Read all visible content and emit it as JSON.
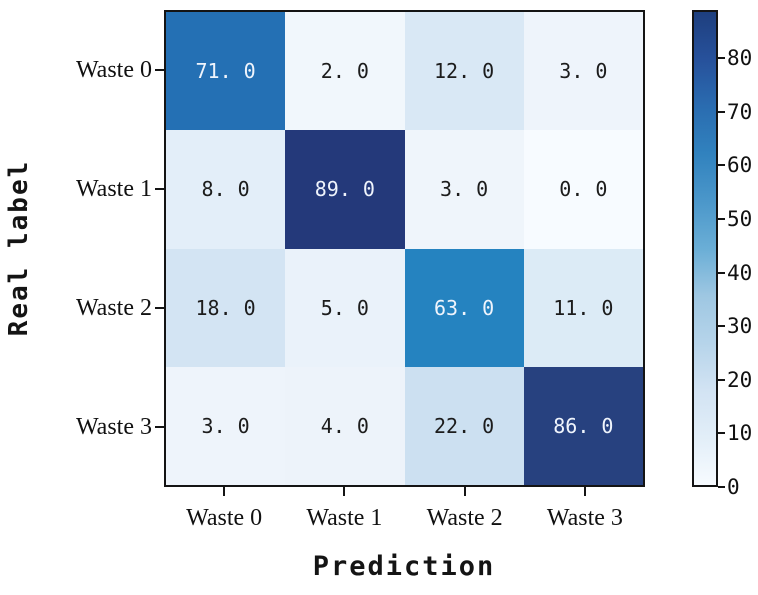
{
  "chart_data": {
    "type": "heatmap",
    "xlabel": "Prediction",
    "ylabel": "Real label",
    "x_categories": [
      "Waste 0",
      "Waste 1",
      "Waste 2",
      "Waste 3"
    ],
    "y_categories": [
      "Waste 0",
      "Waste 1",
      "Waste 2",
      "Waste 3"
    ],
    "matrix": [
      [
        71.0,
        2.0,
        12.0,
        3.0
      ],
      [
        8.0,
        89.0,
        3.0,
        0.0
      ],
      [
        18.0,
        5.0,
        63.0,
        11.0
      ],
      [
        3.0,
        4.0,
        22.0,
        86.0
      ]
    ],
    "cell_labels": [
      [
        "71. 0",
        "2. 0",
        "12. 0",
        "3. 0"
      ],
      [
        "8. 0",
        "89. 0",
        "3. 0",
        "0. 0"
      ],
      [
        "18. 0",
        "5. 0",
        "63. 0",
        "11. 0"
      ],
      [
        "3. 0",
        "4. 0",
        "22. 0",
        "86. 0"
      ]
    ],
    "cell_colors": [
      [
        "#2470b4",
        "#f1f7fc",
        "#d9e8f5",
        "#eef4fb"
      ],
      [
        "#e3eef9",
        "#24397a",
        "#eff5fb",
        "#f7fbff"
      ],
      [
        "#d3e4f3",
        "#eaf2fa",
        "#2583c0",
        "#dcebf6"
      ],
      [
        "#eef4fb",
        "#edf3fa",
        "#cce0f1",
        "#27417f"
      ]
    ],
    "label_white_threshold": 60,
    "label_color_dark": "#1c1c1c",
    "label_color_light": "#eff4fc",
    "colormap": "Blues",
    "colorbar": {
      "min": 0,
      "max": 89,
      "ticks": [
        0,
        10,
        20,
        30,
        40,
        50,
        60,
        70,
        80
      ],
      "gradient_stops": [
        {
          "frac": 0.0,
          "color": "#f7fbff"
        },
        {
          "frac": 0.1,
          "color": "#e2eef8"
        },
        {
          "frac": 0.2,
          "color": "#d2e3f3"
        },
        {
          "frac": 0.3,
          "color": "#b6d4ea"
        },
        {
          "frac": 0.4,
          "color": "#9ec7e2"
        },
        {
          "frac": 0.5,
          "color": "#6aaed6"
        },
        {
          "frac": 0.6,
          "color": "#4b97ca"
        },
        {
          "frac": 0.7,
          "color": "#3182be"
        },
        {
          "frac": 0.8,
          "color": "#2a6cb0"
        },
        {
          "frac": 0.9,
          "color": "#27519b"
        },
        {
          "frac": 1.0,
          "color": "#1e3f7e"
        }
      ]
    },
    "axis_color": "#141414"
  }
}
